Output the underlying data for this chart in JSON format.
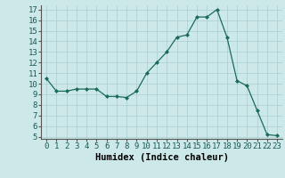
{
  "x": [
    0,
    1,
    2,
    3,
    4,
    5,
    6,
    7,
    8,
    9,
    10,
    11,
    12,
    13,
    14,
    15,
    16,
    17,
    18,
    19,
    20,
    21,
    22,
    23
  ],
  "y": [
    10.5,
    9.3,
    9.3,
    9.5,
    9.5,
    9.5,
    8.8,
    8.8,
    8.7,
    9.3,
    11.0,
    12.0,
    13.0,
    14.4,
    14.6,
    16.3,
    16.3,
    17.0,
    14.4,
    10.3,
    9.8,
    7.5,
    5.2,
    5.1
  ],
  "xlabel": "Humidex (Indice chaleur)",
  "xlim": [
    -0.5,
    23.5
  ],
  "ylim": [
    4.8,
    17.4
  ],
  "yticks": [
    5,
    6,
    7,
    8,
    9,
    10,
    11,
    12,
    13,
    14,
    15,
    16,
    17
  ],
  "xticks": [
    0,
    1,
    2,
    3,
    4,
    5,
    6,
    7,
    8,
    9,
    10,
    11,
    12,
    13,
    14,
    15,
    16,
    17,
    18,
    19,
    20,
    21,
    22,
    23
  ],
  "line_color": "#1a6b5a",
  "marker_color": "#1a6b5a",
  "bg_color": "#cce8e8",
  "grid_color": "#aacece",
  "label_fontsize": 7.5,
  "tick_fontsize": 6.5
}
